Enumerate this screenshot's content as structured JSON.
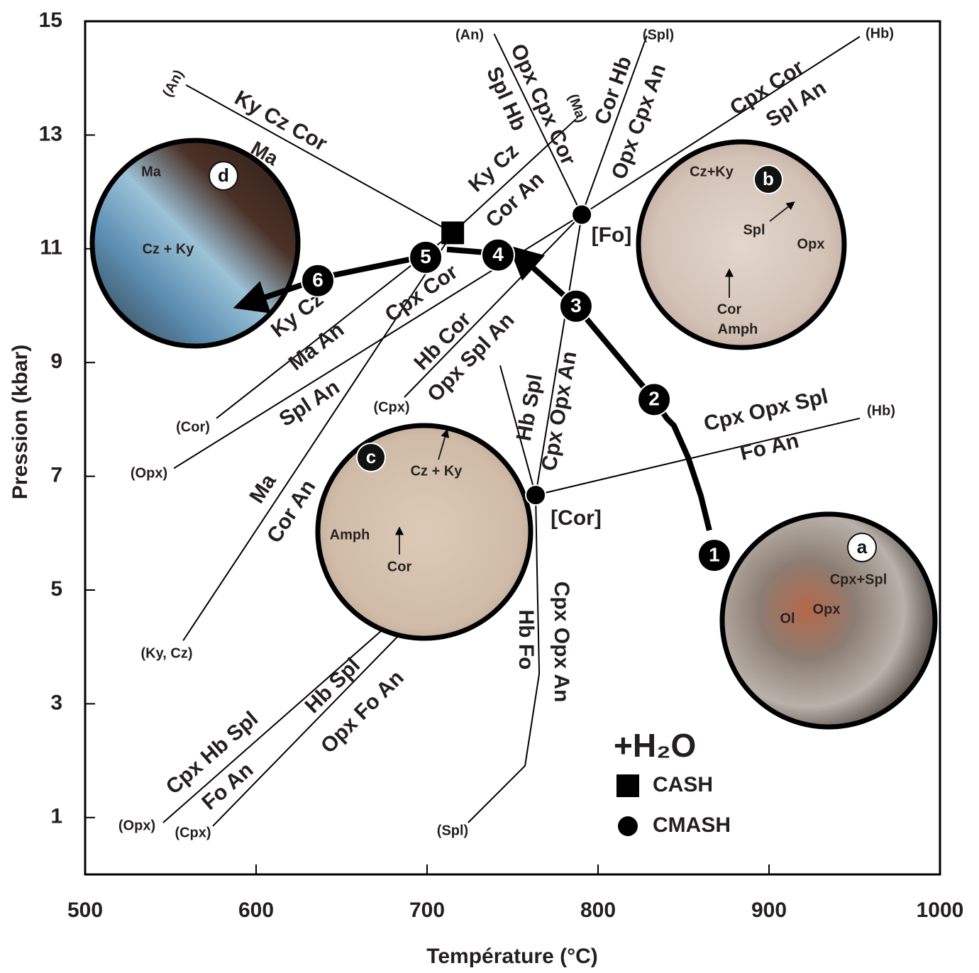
{
  "chart_data": {
    "type": "phase-diagram",
    "x_label": "Température (°C)",
    "y_label": "Pression (kbar)",
    "xlim": [
      500,
      1000
    ],
    "ylim": [
      0,
      15
    ],
    "xticks": [
      500,
      600,
      700,
      800,
      900,
      1000
    ],
    "yticks": [
      1,
      3,
      5,
      7,
      9,
      11,
      13,
      15
    ],
    "legend": {
      "title": "+H₂O",
      "items": [
        {
          "name": "CASH",
          "marker": "square"
        },
        {
          "name": "CMASH",
          "marker": "circle"
        }
      ]
    },
    "reactions": [
      {
        "name": "(An)",
        "labels": [
          "Ky Cz Cor"
        ],
        "T": [
          559.0,
          715.0
        ],
        "P": [
          13.88,
          11.28
        ]
      },
      {
        "name": "(Ma)",
        "labels": [
          "Ky Cz",
          "Cor An"
        ],
        "T": [
          715.0,
          787.1
        ],
        "P": [
          11.28,
          13.28
        ]
      },
      {
        "name": "(Cor)",
        "labels": [
          "Ky Cz",
          "Ma An"
        ],
        "T": [
          576.8,
          715.0
        ],
        "P": [
          8.02,
          11.28
        ]
      },
      {
        "name": "(Ky, Cz)",
        "labels": [
          "Ma",
          "Cor An"
        ],
        "T": [
          557.3,
          715.0
        ],
        "P": [
          4.11,
          11.28
        ]
      },
      {
        "name": "(An)",
        "labels": [
          "Opx Cpx Cor",
          "Spl Hb"
        ],
        "T": [
          739.2,
          790.5
        ],
        "P": [
          14.78,
          11.6
        ]
      },
      {
        "name": "(Spl)",
        "labels": [
          "Cor Hb",
          "Opx Cpx An"
        ],
        "T": [
          828.6,
          790.5
        ],
        "P": [
          14.75,
          11.6
        ]
      },
      {
        "name": "(Hb)",
        "labels": [
          "Cpx Cor",
          "Spl An"
        ],
        "T": [
          953.1,
          790.5
        ],
        "P": [
          14.73,
          11.6
        ]
      },
      {
        "name": "(Opx)",
        "labels": [
          "Cpx Cor",
          "Spl An"
        ],
        "T": [
          551.9,
          790.5
        ],
        "P": [
          7.14,
          11.6
        ]
      },
      {
        "name": "(Cpx)",
        "labels": [
          "Hb Cor",
          "Opx Spl An"
        ],
        "T": [
          686.7,
          790.5
        ],
        "P": [
          8.39,
          11.6
        ]
      },
      {
        "labels": [
          "Cpx Opx An"
        ],
        "T": [
          790.5,
          763.5
        ],
        "P": [
          11.6,
          6.67
        ]
      },
      {
        "labels": [
          "Hb Spl"
        ],
        "T": [
          742.7,
          763.5
        ],
        "P": [
          8.95,
          6.67
        ]
      },
      {
        "name": "(Hb)",
        "labels": [
          "Cpx Opx Spl",
          "Fo An"
        ],
        "T": [
          763.5,
          953.1
        ],
        "P": [
          6.67,
          8.02
        ]
      },
      {
        "name": "(Spl)",
        "labels": [
          "Cpx Opx An",
          "Hb Fo"
        ],
        "T": [
          763.5,
          764.3,
          765.6,
          757.3,
          724.0
        ],
        "P": [
          6.67,
          5.4,
          3.53,
          1.91,
          0.91
        ]
      },
      {
        "name": "(Opx)",
        "labels": [
          "Cpx Hb Spl",
          "Fo An"
        ],
        "T": [
          545.6,
          763.5
        ],
        "P": [
          0.91,
          6.67
        ]
      },
      {
        "name": "(Cpx)",
        "labels": [
          "Hb Spl",
          "Opx Fo An"
        ],
        "T": [
          574.7,
          763.5
        ],
        "P": [
          0.85,
          6.67
        ]
      }
    ],
    "invariant_points": [
      {
        "name": "[Fo]",
        "system": "CMASH",
        "T": 790.5,
        "P": 11.6
      },
      {
        "name": "[Cor]",
        "system": "CMASH",
        "T": 763.5,
        "P": 6.67
      },
      {
        "system": "CASH",
        "T": 715.0,
        "P": 11.28
      }
    ],
    "path": {
      "T": [
        865.1,
        860.2,
        852.7,
        844.4,
        840.2,
        832.8,
        787.1,
        759.3,
        null,
        740.7,
        711.6,
        null,
        690.9,
        641.1,
        601.7
      ],
      "P": [
        6.05,
        6.65,
        7.33,
        7.89,
        8.02,
        8.35,
        9.99,
        10.74,
        null,
        10.92,
        10.99,
        null,
        10.82,
        10.51,
        10.11
      ],
      "arrows": [
        true,
        false,
        true
      ],
      "steps": [
        {
          "label": "1",
          "T": 868.0,
          "P": 5.61
        },
        {
          "label": "2",
          "T": 832.8,
          "P": 8.35
        },
        {
          "label": "3",
          "T": 787.1,
          "P": 9.99
        },
        {
          "label": "4",
          "T": 741.5,
          "P": 10.89
        },
        {
          "label": "5",
          "T": 699.2,
          "P": 10.85
        },
        {
          "label": "6",
          "T": 636.1,
          "P": 10.44
        }
      ]
    },
    "photos": [
      {
        "letter": "a",
        "labels": [
          "Cpx+Spl",
          "Opx",
          "Ol"
        ]
      },
      {
        "letter": "b",
        "labels": [
          "Cz+Ky",
          "Spl",
          "Opx",
          "Cor",
          "Amph"
        ]
      },
      {
        "letter": "c",
        "labels": [
          "Cz + Ky",
          "Amph",
          "Cor"
        ]
      },
      {
        "letter": "d",
        "labels": [
          "Ma",
          "Cz + Ky",
          "Ma"
        ]
      }
    ]
  }
}
